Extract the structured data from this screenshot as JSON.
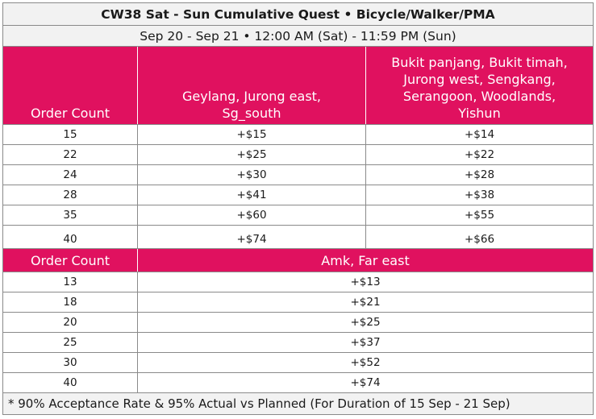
{
  "title": "CW38 Sat - Sun Cumulative Quest • Bicycle/Walker/PMA",
  "subtitle": "Sep 20 - Sep 21 • 12:00 AM (Sat) - 11:59 PM (Sun)",
  "colors": {
    "accent": "#e0115f",
    "header_bg": "#f2f2f2"
  },
  "table1": {
    "headers": {
      "order_count": "Order Count",
      "zone_a": [
        "Geylang, Jurong east,",
        "Sg_south"
      ],
      "zone_b": [
        "Bukit panjang, Bukit timah,",
        "Jurong west, Sengkang,",
        "Serangoon, Woodlands,",
        "Yishun"
      ]
    },
    "rows": [
      {
        "count": "15",
        "a": "+$15",
        "b": "+$14"
      },
      {
        "count": "22",
        "a": "+$25",
        "b": "+$22"
      },
      {
        "count": "24",
        "a": "+$30",
        "b": "+$28"
      },
      {
        "count": "28",
        "a": "+$41",
        "b": "+$38"
      },
      {
        "count": "35",
        "a": "+$60",
        "b": "+$55"
      },
      {
        "count": "40",
        "a": "+$74",
        "b": "+$66"
      }
    ]
  },
  "table2": {
    "headers": {
      "order_count": "Order Count",
      "zone": "Amk, Far east"
    },
    "rows": [
      {
        "count": "13",
        "value": "+$13"
      },
      {
        "count": "18",
        "value": "+$21"
      },
      {
        "count": "20",
        "value": "+$25"
      },
      {
        "count": "25",
        "value": "+$37"
      },
      {
        "count": "30",
        "value": "+$52"
      },
      {
        "count": "40",
        "value": "+$74"
      }
    ]
  },
  "footnote": "* 90% Acceptance Rate & 95% Actual vs Planned (For Duration of 15 Sep - 21 Sep)"
}
